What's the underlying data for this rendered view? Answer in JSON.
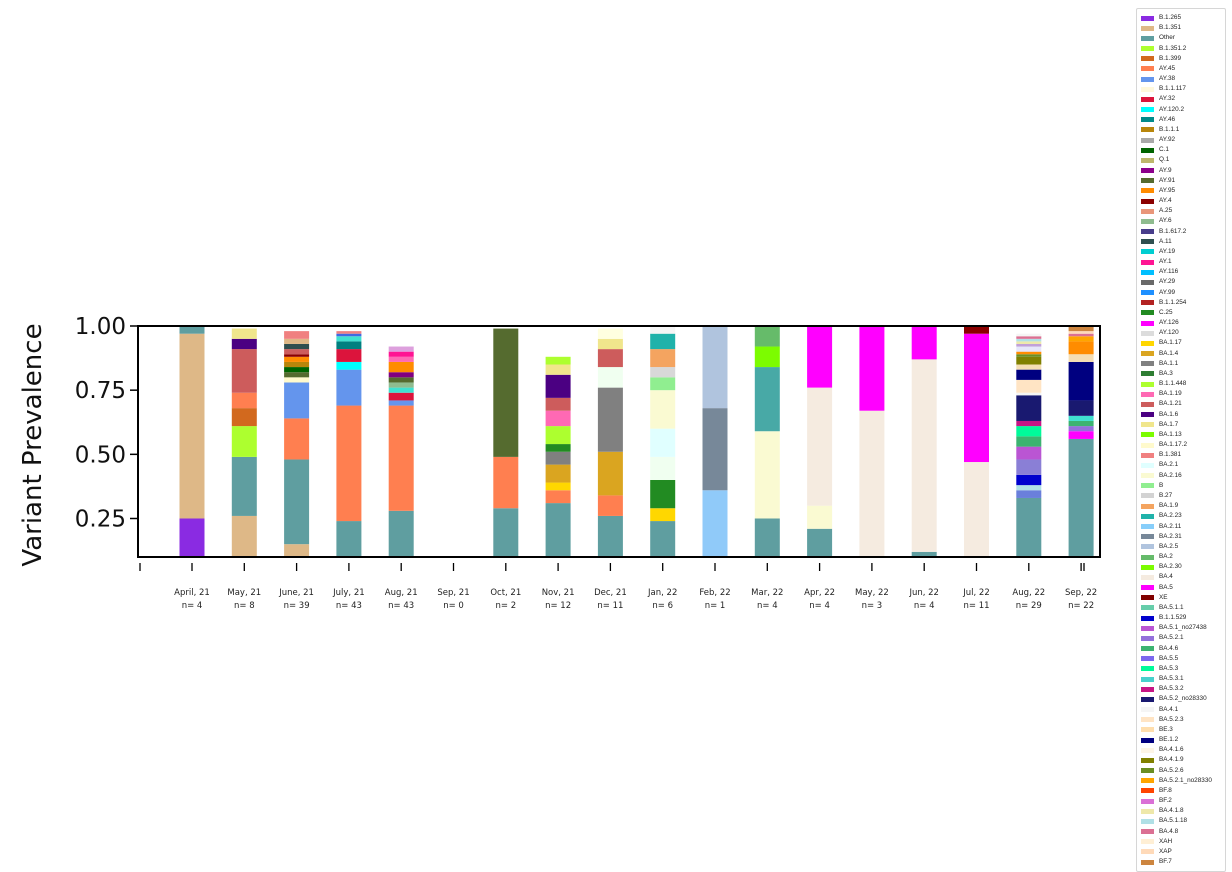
{
  "chart_data": {
    "type": "bar",
    "ylabel": "Variant Prevalence",
    "ylim": [
      0.1,
      1.0
    ],
    "yticks": [
      "0.25",
      "0.50",
      "0.75",
      "1.00"
    ],
    "categories": [
      "April, 21",
      "May, 21",
      "June, 21",
      "July, 21",
      "Aug, 21",
      "Sep, 21",
      "Oct, 21",
      "Nov, 21",
      "Dec, 21",
      "Jan, 22",
      "Feb, 22",
      "Mar, 22",
      "Apr, 22",
      "May, 22",
      "Jun, 22",
      "Jul, 22",
      "Aug, 22",
      "Sep, 22"
    ],
    "counts": [
      "n= 4",
      "n= 8",
      "n= 39",
      "n= 43",
      "n= 43",
      "n= 0",
      "n= 2",
      "n= 12",
      "n= 11",
      "n= 6",
      "n= 1",
      "n= 4",
      "n= 4",
      "n= 3",
      "n= 4",
      "n= 11",
      "n= 29",
      "n= 22"
    ],
    "stacks": [
      [
        [
          "#8A2BE2",
          0.25
        ],
        [
          "#DEB887",
          0.72
        ],
        [
          "#5F9EA0",
          0.03
        ]
      ],
      [
        [
          "#DEB887",
          0.26
        ],
        [
          "#5F9EA0",
          0.23
        ],
        [
          "#ADFF2F",
          0.12
        ],
        [
          "#D2691E",
          0.07
        ],
        [
          "#FF7F50",
          0.06
        ],
        [
          "#CD5C5C",
          0.17
        ],
        [
          "#4B0082",
          0.04
        ],
        [
          "#F0E68C",
          0.04
        ]
      ],
      [
        [
          "#DEB887",
          0.15
        ],
        [
          "#5F9EA0",
          0.33
        ],
        [
          "#FF7F50",
          0.16
        ],
        [
          "#6495ED",
          0.14
        ],
        [
          "#FFFACD",
          0.02
        ],
        [
          "#556B2F",
          0.02
        ],
        [
          "#006400",
          0.02
        ],
        [
          "#B8860B",
          0.02
        ],
        [
          "#FF8C00",
          0.02
        ],
        [
          "#8B0000",
          0.01
        ],
        [
          "#CD5C5C",
          0.02
        ],
        [
          "#2F4F4F",
          0.02
        ],
        [
          "#DEB887",
          0.02
        ],
        [
          "#F08080",
          0.03
        ]
      ],
      [
        [
          "#5F9EA0",
          0.24
        ],
        [
          "#FF7F50",
          0.45
        ],
        [
          "#6495ED",
          0.14
        ],
        [
          "#00FFFF",
          0.03
        ],
        [
          "#DC143C",
          0.05
        ],
        [
          "#008080",
          0.03
        ],
        [
          "#40E0D0",
          0.02
        ],
        [
          "#4169E1",
          0.01
        ],
        [
          "#F08080",
          0.01
        ]
      ],
      [
        [
          "#5F9EA0",
          0.28
        ],
        [
          "#FF7F50",
          0.41
        ],
        [
          "#6495ED",
          0.02
        ],
        [
          "#DC143C",
          0.03
        ],
        [
          "#40E0D0",
          0.02
        ],
        [
          "#8FBC8F",
          0.02
        ],
        [
          "#556B2F",
          0.02
        ],
        [
          "#800080",
          0.02
        ],
        [
          "#FF8C00",
          0.04
        ],
        [
          "#FF69B4",
          0.02
        ],
        [
          "#FF1493",
          0.02
        ],
        [
          "#DDA0DD",
          0.02
        ]
      ],
      [],
      [
        [
          "#5F9EA0",
          0.29
        ],
        [
          "#FF7F50",
          0.2
        ],
        [
          "#556B2F",
          0.5
        ]
      ],
      [
        [
          "#5F9EA0",
          0.31
        ],
        [
          "#FF7F50",
          0.05
        ],
        [
          "#FFD700",
          0.03
        ],
        [
          "#DAA520",
          0.07
        ],
        [
          "#808080",
          0.05
        ],
        [
          "#228B22",
          0.03
        ],
        [
          "#ADFF2F",
          0.07
        ],
        [
          "#FF69B4",
          0.06
        ],
        [
          "#CD5C5C",
          0.05
        ],
        [
          "#4B0082",
          0.09
        ],
        [
          "#F0E68C",
          0.04
        ],
        [
          "#ADFF2F",
          0.03
        ]
      ],
      [
        [
          "#5F9EA0",
          0.26
        ],
        [
          "#FF7F50",
          0.08
        ],
        [
          "#DAA520",
          0.17
        ],
        [
          "#808080",
          0.25
        ],
        [
          "#F0FFF0",
          0.08
        ],
        [
          "#CD5C5C",
          0.07
        ],
        [
          "#F0E68C",
          0.04
        ],
        [
          "#FFFFE0",
          0.04
        ]
      ],
      [
        [
          "#5F9EA0",
          0.24
        ],
        [
          "#FFD700",
          0.05
        ],
        [
          "#228B22",
          0.11
        ],
        [
          "#F0FFF0",
          0.09
        ],
        [
          "#E0FFFF",
          0.11
        ],
        [
          "#FAFAD2",
          0.15
        ],
        [
          "#90EE90",
          0.05
        ],
        [
          "#D8D8D8",
          0.04
        ],
        [
          "#F4A460",
          0.07
        ],
        [
          "#20B2AA",
          0.06
        ],
        [
          "#F5F5F5",
          0.03
        ]
      ],
      [
        [
          "#90CAF9",
          0.36
        ],
        [
          "#778899",
          0.32
        ],
        [
          "#B0C4DE",
          0.32
        ]
      ],
      [
        [
          "#5F9EA0",
          0.25
        ],
        [
          "#FAFAD2",
          0.34
        ],
        [
          "#48A9A6",
          0.25
        ],
        [
          "#7CFC00",
          0.08
        ],
        [
          "#66BB6A",
          0.08
        ]
      ],
      [
        [
          "#5F9EA0",
          0.21
        ],
        [
          "#FAFAD2",
          0.09
        ],
        [
          "#F5EBE0",
          0.46
        ],
        [
          "#FF00FF",
          0.24
        ]
      ],
      [
        [
          "#F5EBE0",
          0.67
        ],
        [
          "#FF00FF",
          0.33
        ]
      ],
      [
        [
          "#5F9EA0",
          0.12
        ],
        [
          "#F5EBE0",
          0.75
        ],
        [
          "#FF00FF",
          0.13
        ]
      ],
      [
        [
          "#F5EBE0",
          0.47
        ],
        [
          "#FF00FF",
          0.5
        ],
        [
          "#8B0000",
          0.03
        ]
      ],
      [
        [
          "#5F9EA0",
          0.33
        ],
        [
          "#6A7FDB",
          0.03
        ],
        [
          "#B0E0E6",
          0.02
        ],
        [
          "#0000CD",
          0.04
        ],
        [
          "#8A7FD6",
          0.06
        ],
        [
          "#BA55D3",
          0.05
        ],
        [
          "#3CB371",
          0.04
        ],
        [
          "#00FA9A",
          0.04
        ],
        [
          "#C71585",
          0.02
        ],
        [
          "#191970",
          0.1
        ],
        [
          "#F5F5F5",
          0.01
        ],
        [
          "#FFE4C4",
          0.05
        ],
        [
          "#000080",
          0.04
        ],
        [
          "#F5DEB3",
          0.02
        ],
        [
          "#808000",
          0.03
        ],
        [
          "#6B8E23",
          0.01
        ],
        [
          "#FF8C00",
          0.01
        ],
        [
          "#E6E6FA",
          0.02
        ],
        [
          "#C1A0D9",
          0.01
        ],
        [
          "#EEE8AA",
          0.01
        ],
        [
          "#B0E0E6",
          0.01
        ],
        [
          "#DB7093",
          0.01
        ],
        [
          "#F5F5F5",
          0.01
        ]
      ],
      [
        [
          "#5F9EA0",
          0.56
        ],
        [
          "#FF00FF",
          0.03
        ],
        [
          "#9370DB",
          0.02
        ],
        [
          "#3CB371",
          0.02
        ],
        [
          "#40E0D0",
          0.02
        ],
        [
          "#191970",
          0.06
        ],
        [
          "#000080",
          0.15
        ],
        [
          "#F5DEB3",
          0.03
        ],
        [
          "#FF8C00",
          0.05
        ],
        [
          "#FFA500",
          0.02
        ],
        [
          "#DB7093",
          0.01
        ],
        [
          "#FFDAB9",
          0.01
        ],
        [
          "#CD853F",
          0.02
        ]
      ]
    ]
  },
  "legend": {
    "items": [
      {
        "label": "B.1.265",
        "color": "#8A2BE2"
      },
      {
        "label": "B.1.351",
        "color": "#DEB887"
      },
      {
        "label": "Other",
        "color": "#5F9EA0"
      },
      {
        "label": "B.1.351.2",
        "color": "#ADFF2F"
      },
      {
        "label": "B.1.399",
        "color": "#D2691E"
      },
      {
        "label": "AY.45",
        "color": "#FF7F50"
      },
      {
        "label": "AY.38",
        "color": "#6495ED"
      },
      {
        "label": "B.1.1.117",
        "color": "#FFF8DC"
      },
      {
        "label": "AY.32",
        "color": "#DC143C"
      },
      {
        "label": "AY.120.2",
        "color": "#00FFFF"
      },
      {
        "label": "AY.46",
        "color": "#008B8B"
      },
      {
        "label": "B.1.1.1",
        "color": "#B8860B"
      },
      {
        "label": "AY.92",
        "color": "#A9A9A9"
      },
      {
        "label": "C.1",
        "color": "#006400"
      },
      {
        "label": "Q.1",
        "color": "#BDB76B"
      },
      {
        "label": "AY.9",
        "color": "#8B008B"
      },
      {
        "label": "AY.91",
        "color": "#556B2F"
      },
      {
        "label": "AY.95",
        "color": "#FF8C00"
      },
      {
        "label": "AY.4",
        "color": "#8B0000"
      },
      {
        "label": "A.25",
        "color": "#E9967A"
      },
      {
        "label": "AY.6",
        "color": "#8FBC8F"
      },
      {
        "label": "B.1.617.2",
        "color": "#483D8B"
      },
      {
        "label": "A.11",
        "color": "#2F4F4F"
      },
      {
        "label": "AY.19",
        "color": "#00CED1"
      },
      {
        "label": "AY.1",
        "color": "#FF1493"
      },
      {
        "label": "AY.116",
        "color": "#00BFFF"
      },
      {
        "label": "AY.29",
        "color": "#696969"
      },
      {
        "label": "AY.99",
        "color": "#1E90FF"
      },
      {
        "label": "B.1.1.254",
        "color": "#B22222"
      },
      {
        "label": "C.25",
        "color": "#228B22"
      },
      {
        "label": "AY.126",
        "color": "#FF00FF"
      },
      {
        "label": "AY.120",
        "color": "#DCDCDC"
      },
      {
        "label": "BA.1.17",
        "color": "#FFD700"
      },
      {
        "label": "BA.1.4",
        "color": "#DAA520"
      },
      {
        "label": "BA.1.1",
        "color": "#808080"
      },
      {
        "label": "BA.3",
        "color": "#2E7D32"
      },
      {
        "label": "B.1.1.448",
        "color": "#ADFF2F"
      },
      {
        "label": "BA.1.19",
        "color": "#FF69B4"
      },
      {
        "label": "BA.1.21",
        "color": "#CD5C5C"
      },
      {
        "label": "BA.1.6",
        "color": "#4B0082"
      },
      {
        "label": "BA.1.7",
        "color": "#F0E68C"
      },
      {
        "label": "BA.1.13",
        "color": "#7CFC00"
      },
      {
        "label": "BA.1.17.2",
        "color": "#FFFACD"
      },
      {
        "label": "B.1.381",
        "color": "#F08080"
      },
      {
        "label": "BA.2.1",
        "color": "#E0FFFF"
      },
      {
        "label": "BA.2.16",
        "color": "#FAFAD2"
      },
      {
        "label": "B",
        "color": "#90EE90"
      },
      {
        "label": "B.27",
        "color": "#D3D3D3"
      },
      {
        "label": "BA.1.9",
        "color": "#F4A460"
      },
      {
        "label": "BA.2.23",
        "color": "#20B2AA"
      },
      {
        "label": "BA.2.11",
        "color": "#87CEFA"
      },
      {
        "label": "BA.2.31",
        "color": "#778899"
      },
      {
        "label": "BA.2.5",
        "color": "#B0C4DE"
      },
      {
        "label": "BA.2",
        "color": "#66BB6A"
      },
      {
        "label": "BA.2.30",
        "color": "#7CFC00"
      },
      {
        "label": "BA.4",
        "color": "#F5EBE0"
      },
      {
        "label": "BA.5",
        "color": "#FF00FF"
      },
      {
        "label": "XE",
        "color": "#800000"
      },
      {
        "label": "BA.5.1.1",
        "color": "#66CDAA"
      },
      {
        "label": "B.1.1.529",
        "color": "#0000CD"
      },
      {
        "label": "BA.5.1_no27438",
        "color": "#BA55D3"
      },
      {
        "label": "BA.5.2.1",
        "color": "#9370DB"
      },
      {
        "label": "BA.4.6",
        "color": "#3CB371"
      },
      {
        "label": "BA.5.5",
        "color": "#7B68EE"
      },
      {
        "label": "BA.5.3",
        "color": "#00FA9A"
      },
      {
        "label": "BA.5.3.1",
        "color": "#48D1CC"
      },
      {
        "label": "BA.5.3.2",
        "color": "#C71585"
      },
      {
        "label": "BA.5.2_no28330",
        "color": "#191970"
      },
      {
        "label": "BA.4.1",
        "color": "#F5F5F5"
      },
      {
        "label": "BA.5.2.3",
        "color": "#FFE4C4"
      },
      {
        "label": "BE.3",
        "color": "#FFDEAD"
      },
      {
        "label": "BE.1.2",
        "color": "#000080"
      },
      {
        "label": "BA.4.1.6",
        "color": "#FDF5E6"
      },
      {
        "label": "BA.4.1.9",
        "color": "#808000"
      },
      {
        "label": "BA.5.2.6",
        "color": "#6B8E23"
      },
      {
        "label": "BA.5.2.1_no28330",
        "color": "#FFA500"
      },
      {
        "label": "BF.8",
        "color": "#FF4500"
      },
      {
        "label": "BF.2",
        "color": "#DA70D6"
      },
      {
        "label": "BA.4.1.8",
        "color": "#EEE8AA"
      },
      {
        "label": "BA.5.1.18",
        "color": "#B0E0E6"
      },
      {
        "label": "BA.4.8",
        "color": "#DB7093"
      },
      {
        "label": "XAH",
        "color": "#FFEFD5"
      },
      {
        "label": "XAP",
        "color": "#FFDAB9"
      },
      {
        "label": "BF.7",
        "color": "#CD853F"
      }
    ]
  }
}
